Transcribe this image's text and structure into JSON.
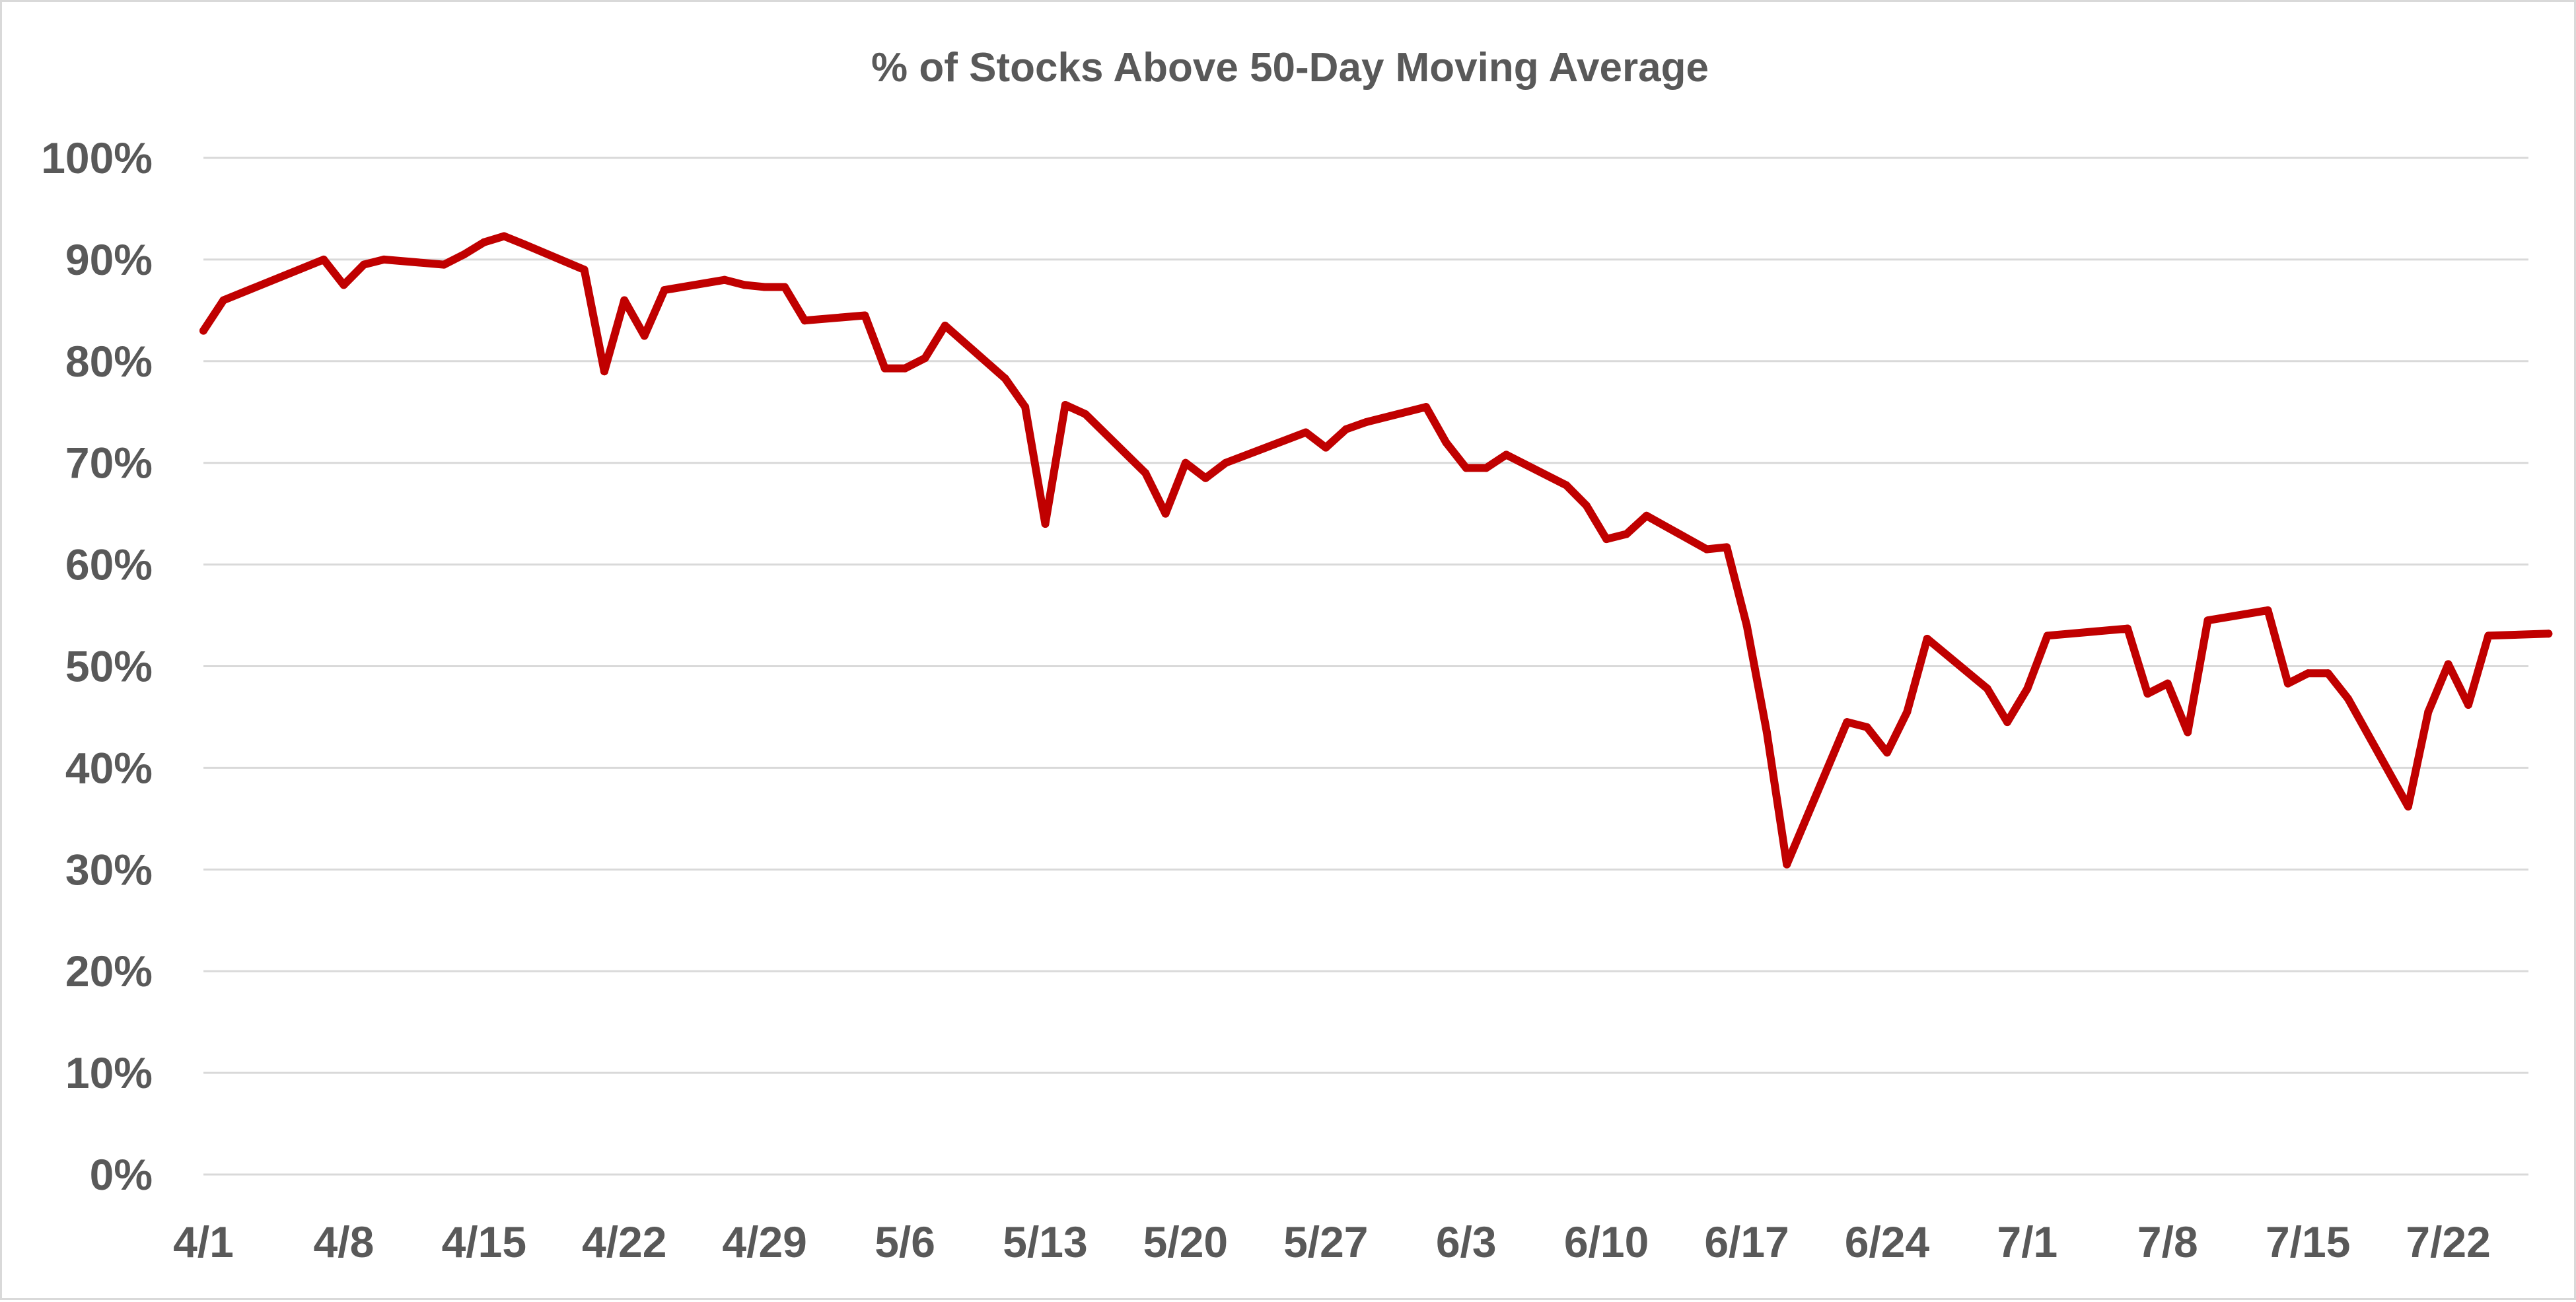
{
  "chart_data": {
    "type": "line",
    "title": "% of Stocks Above 50-Day Moving Average",
    "xlabel": "",
    "ylabel": "",
    "ylim": [
      0,
      100
    ],
    "xlim": [
      "4/1",
      "7/26"
    ],
    "grid": true,
    "legend": "none",
    "y_ticks": [
      {
        "value": 0,
        "label": "0%"
      },
      {
        "value": 10,
        "label": "10%"
      },
      {
        "value": 20,
        "label": "20%"
      },
      {
        "value": 30,
        "label": "30%"
      },
      {
        "value": 40,
        "label": "40%"
      },
      {
        "value": 50,
        "label": "50%"
      },
      {
        "value": 60,
        "label": "60%"
      },
      {
        "value": 70,
        "label": "70%"
      },
      {
        "value": 80,
        "label": "80%"
      },
      {
        "value": 90,
        "label": "90%"
      },
      {
        "value": 100,
        "label": "100%"
      }
    ],
    "x_ticks": [
      "4/1",
      "4/8",
      "4/15",
      "4/22",
      "4/29",
      "5/6",
      "5/13",
      "5/20",
      "5/27",
      "6/3",
      "6/10",
      "6/17",
      "6/24",
      "7/1",
      "7/8",
      "7/15",
      "7/22"
    ],
    "series": [
      {
        "color": "#c00000",
        "x": [
          "4/1",
          "4/2",
          "4/7",
          "4/8",
          "4/9",
          "4/10",
          "4/13",
          "4/14",
          "4/15",
          "4/16",
          "4/17",
          "4/20",
          "4/21",
          "4/22",
          "4/23",
          "4/24",
          "4/27",
          "4/28",
          "4/29",
          "4/30",
          "5/1",
          "5/4",
          "5/5",
          "5/6",
          "5/7",
          "5/8",
          "5/11",
          "5/12",
          "5/13",
          "5/14",
          "5/15",
          "5/18",
          "5/19",
          "5/20",
          "5/21",
          "5/22",
          "5/26",
          "5/27",
          "5/28",
          "5/29",
          "6/1",
          "6/2",
          "6/3",
          "6/4",
          "6/5",
          "6/8",
          "6/9",
          "6/10",
          "6/11",
          "6/12",
          "6/15",
          "6/16",
          "6/17",
          "6/18",
          "6/19",
          "6/22",
          "6/23",
          "6/24",
          "6/25",
          "6/26",
          "6/29",
          "6/30",
          "7/1",
          "7/2",
          "7/6",
          "7/7",
          "7/8",
          "7/9",
          "7/10",
          "7/13",
          "7/14",
          "7/15",
          "7/16",
          "7/17",
          "7/20",
          "7/21",
          "7/22",
          "7/23",
          "7/24",
          "7/27"
        ],
        "values": [
          83,
          86,
          90,
          87.5,
          89.5,
          90,
          89.5,
          90.5,
          91.7,
          92.3,
          91.5,
          89,
          79,
          86,
          82.5,
          87,
          88,
          87.5,
          87.3,
          87.3,
          84,
          84.5,
          79.3,
          79.3,
          80.3,
          83.5,
          78.3,
          75.5,
          64,
          75.7,
          74.8,
          69,
          65,
          70,
          68.5,
          70,
          73,
          71.5,
          73.3,
          74,
          75.5,
          72,
          69.5,
          69.5,
          70.8,
          67.8,
          65.8,
          62.5,
          63,
          64.8,
          61.5,
          61.7,
          54,
          43.5,
          30.5,
          44.5,
          44,
          41.5,
          45.5,
          52.7,
          47.8,
          44.5,
          47.8,
          53,
          53.7,
          47.3,
          48.3,
          43.5,
          54.5,
          55.5,
          48.3,
          49.3,
          49.3,
          46.8,
          36.2,
          45.5,
          50.2,
          46.2,
          53,
          53.2
        ]
      }
    ]
  }
}
